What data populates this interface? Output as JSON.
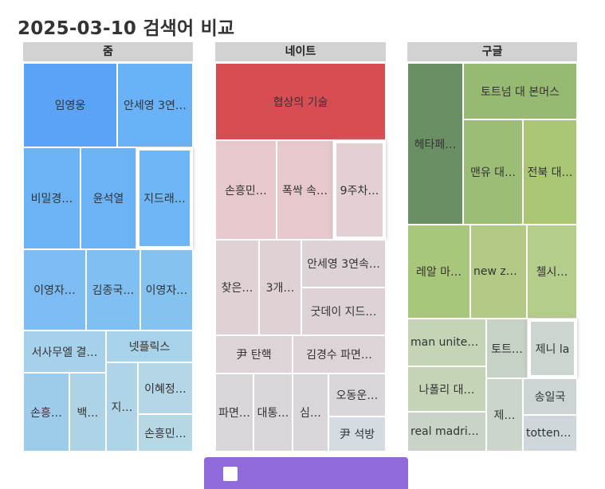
{
  "page": {
    "title": "2025-03-10 검색어 비교"
  },
  "button": {
    "label": ""
  },
  "chart_data": [
    {
      "type": "treemap",
      "title": "줌",
      "tiles": [
        {
          "label": "임영웅",
          "color": "#5ca2f5"
        },
        {
          "label": "안세영 3연…",
          "color": "#69b2f8"
        },
        {
          "label": "비밀경…",
          "color": "#6cb3f6"
        },
        {
          "label": "윤석열",
          "color": "#6cb3f6"
        },
        {
          "label": "지드래…",
          "color": "#6eb6f6",
          "highlight": true
        },
        {
          "label": "이영자…",
          "color": "#7cbcf2"
        },
        {
          "label": "김종국…",
          "color": "#80bff2"
        },
        {
          "label": "이영자…",
          "color": "#84c2f0"
        },
        {
          "label": "서사무엘 결…",
          "color": "#a6d1ea"
        },
        {
          "label": "넷플릭스",
          "color": "#a8d2ea"
        },
        {
          "label": "손흥…",
          "color": "#9ccbec"
        },
        {
          "label": "백…",
          "color": "#aed3e7"
        },
        {
          "label": "지…",
          "color": "#b0d4e7"
        },
        {
          "label": "이혜정…",
          "color": "#b4d6e7"
        },
        {
          "label": "손흥민…",
          "color": "#b6d7e6"
        }
      ]
    },
    {
      "type": "treemap",
      "title": "네이트",
      "tiles": [
        {
          "label": "협상의 기술",
          "color": "#d84d53"
        },
        {
          "label": "손흥민…",
          "color": "#e7c9cd"
        },
        {
          "label": "폭싹 속…",
          "color": "#e7c9cd"
        },
        {
          "label": "9주차…",
          "color": "#e2d0d3",
          "highlight": true
        },
        {
          "label": "찾은…",
          "color": "#dfd1d4"
        },
        {
          "label": "3개…",
          "color": "#dfd1d4"
        },
        {
          "label": "안세영 3연속…",
          "color": "#ddd3d6"
        },
        {
          "label": "굿데이 지드…",
          "color": "#ddd3d6"
        },
        {
          "label": "尹 탄핵",
          "color": "#dcd4d7"
        },
        {
          "label": "김경수 파면…",
          "color": "#dcd4d7"
        },
        {
          "label": "파면…",
          "color": "#dad5d8"
        },
        {
          "label": "대통…",
          "color": "#dad5d8"
        },
        {
          "label": "심…",
          "color": "#dad5d8"
        },
        {
          "label": "오동운…",
          "color": "#d8d6da"
        },
        {
          "label": "尹 석방",
          "color": "#d4dbe1"
        }
      ]
    },
    {
      "type": "treemap",
      "title": "구글",
      "tiles": [
        {
          "label": "헤타페…",
          "color": "#6a8f64"
        },
        {
          "label": "토트넘 대 본머스",
          "color": "#97ba73"
        },
        {
          "label": "맨유 대…",
          "color": "#9cbd75"
        },
        {
          "label": "전북 대…",
          "color": "#a9c674"
        },
        {
          "label": "레알 마…",
          "color": "#a9c77a"
        },
        {
          "label": "new ze…",
          "color": "#b2ca85"
        },
        {
          "label": "첼시…",
          "color": "#b5cd8a"
        },
        {
          "label": "man united…",
          "color": "#c6d4b6"
        },
        {
          "label": "토트…",
          "color": "#c6d2c5"
        },
        {
          "label": "제니 la",
          "color": "#ccd5cf",
          "highlight": true
        },
        {
          "label": "나폴리 대…",
          "color": "#c6d4b6"
        },
        {
          "label": "제…",
          "color": "#cbd5cc"
        },
        {
          "label": "송일국",
          "color": "#ccd5d4"
        },
        {
          "label": "real madrid…",
          "color": "#c9d3c7"
        },
        {
          "label": "tottenh…",
          "color": "#cfd7da"
        }
      ]
    }
  ]
}
